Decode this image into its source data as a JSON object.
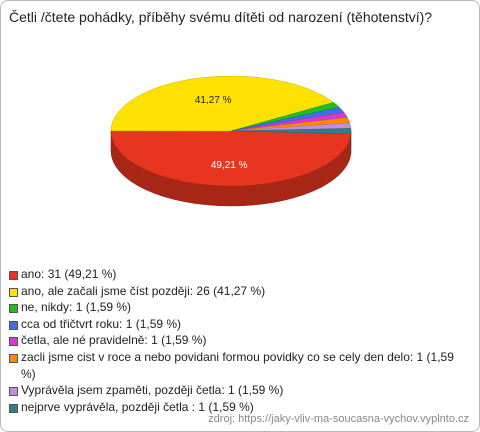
{
  "chart_data": {
    "type": "pie",
    "title": "Četli /čtete pohádky, příběhy svému dítěti od narození (těhotenství)?",
    "categories": [
      "ano: 31 (49,21 %)",
      "ano, ale začali jsme číst později: 26 (41,27 %)",
      "ne, nikdy: 1 (1,59 %)",
      "cca od třičtvrt roku: 1 (1,59 %)",
      "četla, ale né pravidelně: 1 (1,59 %)",
      "zacli jsme cist v roce a nebo povidani formou povidky co se cely den delo: 1 (1,59 %)",
      "Vyprávěla jsem zpaměti, později četla: 1 (1,59 %)",
      "nejprve vyprávěla, později četla : 1 (1,59 %)"
    ],
    "values": [
      49.21,
      41.27,
      1.59,
      1.59,
      1.59,
      1.59,
      1.59,
      1.59
    ],
    "value_labels": [
      "49,21 %",
      "41,27 %",
      null,
      null,
      null,
      null,
      null,
      null
    ],
    "colors": [
      "#e8351f",
      "#ffe100",
      "#1fbf1f",
      "#3f6fe0",
      "#d23ad2",
      "#ff8a00",
      "#c58ed6",
      "#2f7f8a"
    ],
    "source": "zdroj: https://jaky-vliv-ma-soucasna-vychov.vyplnto.cz"
  }
}
